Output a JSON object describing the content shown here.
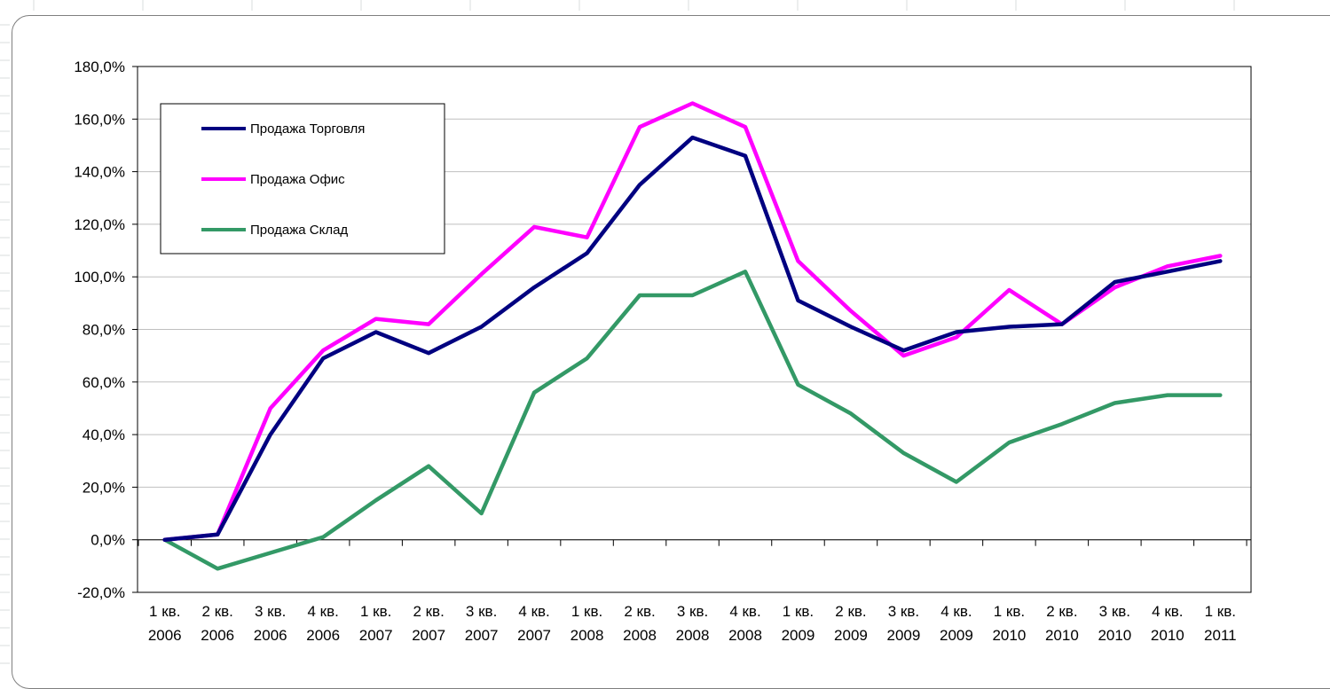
{
  "chart_data": {
    "type": "line",
    "title": "",
    "xlabel": "",
    "ylabel": "",
    "categories": [
      [
        "1 кв.",
        "2006"
      ],
      [
        "2 кв.",
        "2006"
      ],
      [
        "3 кв.",
        "2006"
      ],
      [
        "4 кв.",
        "2006"
      ],
      [
        "1 кв.",
        "2007"
      ],
      [
        "2 кв.",
        "2007"
      ],
      [
        "3 кв.",
        "2007"
      ],
      [
        "4 кв.",
        "2007"
      ],
      [
        "1 кв.",
        "2008"
      ],
      [
        "2 кв.",
        "2008"
      ],
      [
        "3 кв.",
        "2008"
      ],
      [
        "4 кв.",
        "2008"
      ],
      [
        "1 кв.",
        "2009"
      ],
      [
        "2 кв.",
        "2009"
      ],
      [
        "3 кв.",
        "2009"
      ],
      [
        "4 кв.",
        "2009"
      ],
      [
        "1 кв.",
        "2010"
      ],
      [
        "2 кв.",
        "2010"
      ],
      [
        "3 кв.",
        "2010"
      ],
      [
        "4 кв.",
        "2010"
      ],
      [
        "1 кв.",
        "2011"
      ]
    ],
    "ylim": [
      -20,
      180
    ],
    "ytick_step": 20,
    "ytick_format": "percent-comma-1",
    "grid": "horizontal",
    "legend_position": "top-left",
    "series": [
      {
        "name": "Продажа Торговля",
        "color": "#000080",
        "values": [
          0,
          2,
          40,
          69,
          79,
          71,
          81,
          96,
          109,
          135,
          153,
          146,
          91,
          81,
          72,
          79,
          81,
          82,
          98,
          102,
          106
        ]
      },
      {
        "name": "Продажа Офис",
        "color": "#ff00ff",
        "values": [
          0,
          2,
          50,
          72,
          84,
          82,
          101,
          119,
          115,
          157,
          166,
          157,
          106,
          87,
          70,
          77,
          95,
          82,
          96,
          104,
          108
        ]
      },
      {
        "name": "Продажа Склад",
        "color": "#339966",
        "values": [
          0,
          -11,
          -5,
          1,
          15,
          28,
          10,
          56,
          69,
          93,
          93,
          102,
          59,
          48,
          33,
          22,
          37,
          44,
          52,
          55,
          55
        ]
      }
    ]
  }
}
